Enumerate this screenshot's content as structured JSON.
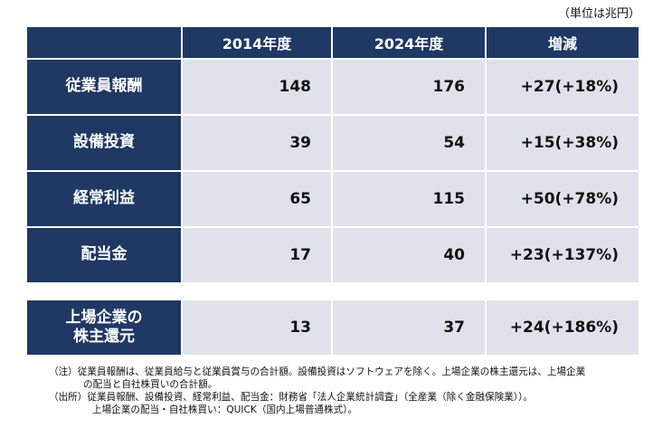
{
  "unit": "（単位は兆円）",
  "header": {
    "col1": "2014年度",
    "col2": "2024年度",
    "col3": "増減"
  },
  "rows": [
    {
      "label": "従業員報酬",
      "v2014": "148",
      "v2024": "176",
      "change": "+27(+18%)"
    },
    {
      "label": "設備投資",
      "v2014": "39",
      "v2024": "54",
      "change": "+15(+38%)"
    },
    {
      "label": "経常利益",
      "v2014": "65",
      "v2024": "115",
      "change": "+50(+78%)"
    },
    {
      "label": "配当金",
      "v2014": "17",
      "v2024": "40",
      "change": "+23(+137%)"
    }
  ],
  "shareholder_row": {
    "label_line1": "上場企業の",
    "label_line2": "株主還元",
    "v2014": "13",
    "v2024": "37",
    "change": "+24(+186%)"
  },
  "notes": {
    "note1": "（注）従業員報酬は、従業員給与と従業員賞与の合計額。設備投資はソフトウェアを除く。上場企業の株主還元は、上場企業",
    "note1_cont": "の配当と自社株買いの合計額。",
    "source1": "（出所）従業員報酬、設備投資、経常利益、配当金：財務省「法人企業統計調査」（全産業（除く金融保険業））。",
    "source2": "上場企業の配当・自社株買い：QUICK（国内上場普通株式）。"
  },
  "colors": {
    "header_bg": "#1f3864",
    "cell_bg": "#dfe2ea"
  }
}
